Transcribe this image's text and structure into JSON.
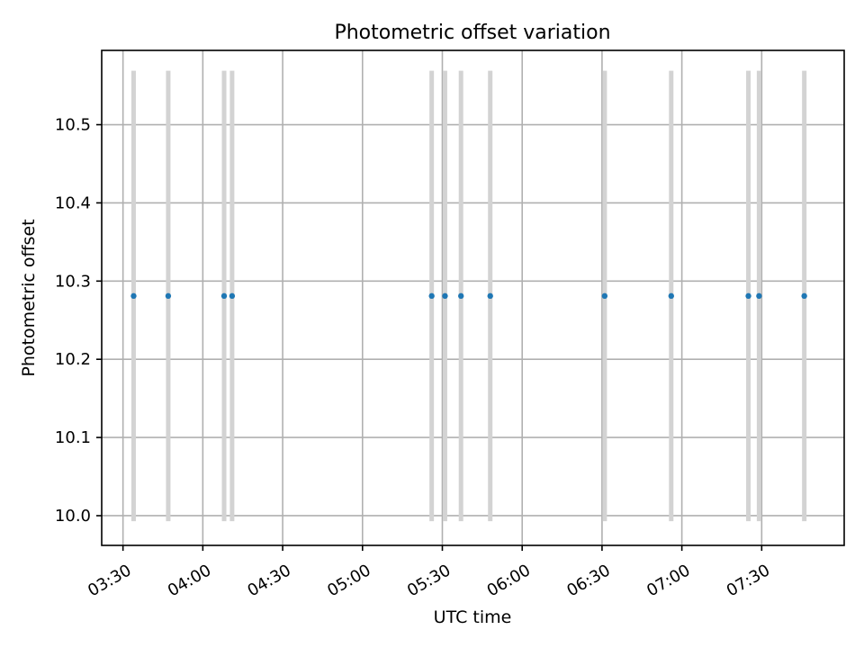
{
  "chart_data": {
    "type": "scatter",
    "title": "Photometric offset variation",
    "xlabel": "UTC time",
    "ylabel": "Photometric offset",
    "x_ticks": [
      "03:30",
      "04:00",
      "04:30",
      "05:00",
      "05:30",
      "06:00",
      "06:30",
      "07:00",
      "07:30"
    ],
    "y_ticks": [
      "10.0",
      "10.1",
      "10.2",
      "10.3",
      "10.4",
      "10.5"
    ],
    "xlim": [
      "03:22",
      "08:01"
    ],
    "ylim": [
      9.962,
      10.595
    ],
    "grid": true,
    "errorbar_color": "#d3d3d3",
    "marker_color": "#1f77b4",
    "series": [
      {
        "x": [
          "03:34",
          "03:47",
          "04:08",
          "04:11",
          "05:26",
          "05:31",
          "05:37",
          "05:48",
          "06:31",
          "06:56",
          "07:25",
          "07:29",
          "07:46"
        ],
        "y": [
          10.281,
          10.281,
          10.281,
          10.281,
          10.281,
          10.281,
          10.281,
          10.281,
          10.281,
          10.281,
          10.281,
          10.281,
          10.281
        ],
        "yerr": [
          0.288,
          0.288,
          0.288,
          0.288,
          0.288,
          0.288,
          0.288,
          0.288,
          0.288,
          0.288,
          0.288,
          0.288,
          0.288
        ]
      }
    ]
  }
}
